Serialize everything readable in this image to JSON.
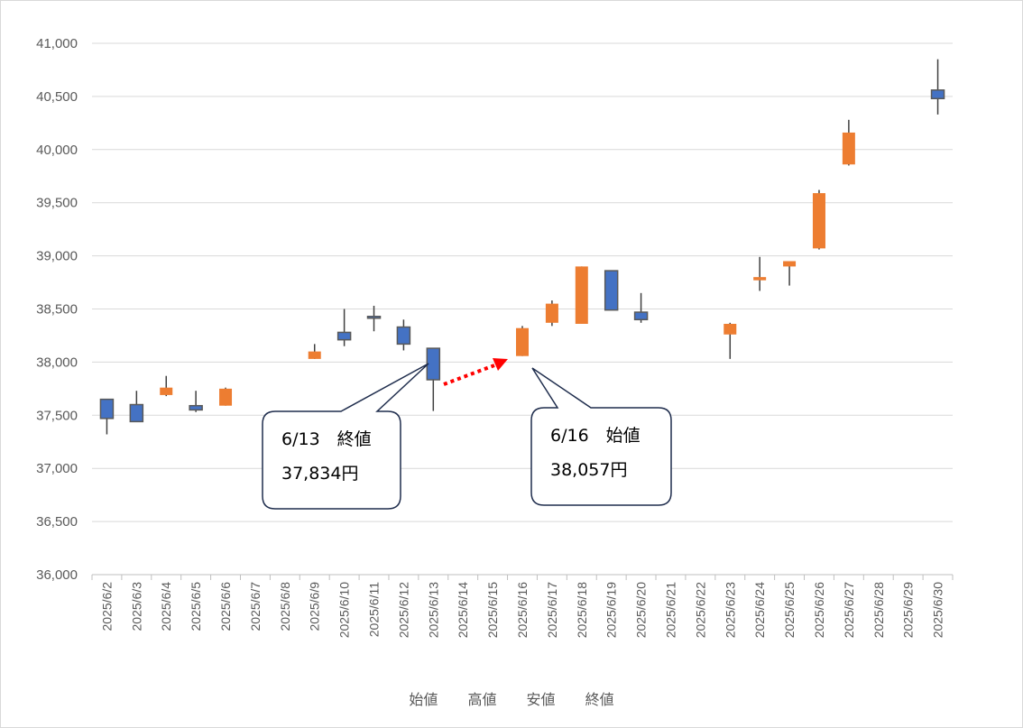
{
  "chart_data": {
    "type": "candlestick",
    "title": "",
    "categories": [
      "2025/6/2",
      "2025/6/3",
      "2025/6/4",
      "2025/6/5",
      "2025/6/6",
      "2025/6/7",
      "2025/6/8",
      "2025/6/9",
      "2025/6/10",
      "2025/6/11",
      "2025/6/12",
      "2025/6/13",
      "2025/6/14",
      "2025/6/15",
      "2025/6/16",
      "2025/6/17",
      "2025/6/18",
      "2025/6/19",
      "2025/6/20",
      "2025/6/21",
      "2025/6/22",
      "2025/6/23",
      "2025/6/24",
      "2025/6/25",
      "2025/6/26",
      "2025/6/27",
      "2025/6/28",
      "2025/6/29",
      "2025/6/30"
    ],
    "series": [
      {
        "name": "始値",
        "values": [
          37650,
          37600,
          37690,
          37590,
          37590,
          null,
          null,
          38030,
          38280,
          38430,
          38330,
          38130,
          null,
          null,
          38057,
          38370,
          38360,
          38860,
          38470,
          null,
          null,
          38260,
          38770,
          38900,
          39070,
          39860,
          null,
          null,
          40560
        ]
      },
      {
        "name": "高値",
        "values": [
          37650,
          37730,
          37870,
          37730,
          37760,
          null,
          null,
          38170,
          38500,
          38530,
          38400,
          38130,
          null,
          null,
          38340,
          38580,
          38900,
          38860,
          38650,
          null,
          null,
          38370,
          38990,
          38950,
          39620,
          40280,
          null,
          null,
          40850
        ]
      },
      {
        "name": "安値",
        "values": [
          37320,
          37440,
          37680,
          37530,
          37590,
          null,
          null,
          38030,
          38150,
          38290,
          38110,
          37540,
          null,
          null,
          38057,
          38340,
          38360,
          38490,
          38370,
          null,
          null,
          38030,
          38670,
          38720,
          39060,
          39850,
          null,
          null,
          40330
        ]
      },
      {
        "name": "終値",
        "values": [
          37470,
          37440,
          37760,
          37550,
          37750,
          null,
          null,
          38100,
          38210,
          38420,
          38170,
          37834,
          null,
          null,
          38320,
          38550,
          38900,
          38490,
          38400,
          null,
          null,
          38360,
          38800,
          38950,
          39590,
          40160,
          null,
          null,
          40480
        ]
      }
    ],
    "ylim": [
      36000,
      41000
    ],
    "yticks": [
      "36,000",
      "36,500",
      "37,000",
      "37,500",
      "38,000",
      "38,500",
      "39,000",
      "39,500",
      "40,000",
      "40,500",
      "41,000"
    ],
    "grid": true,
    "legend_position": "bottom",
    "up_color": "#ED7D31",
    "down_color": "#4472C4",
    "annotations": [
      {
        "line1": "6/13　終値",
        "line2": "37,834円"
      },
      {
        "line1": "6/16　始値",
        "line2": "38,057円"
      }
    ]
  }
}
